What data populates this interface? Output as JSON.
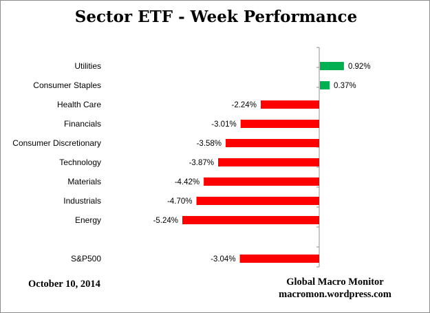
{
  "chart_data": {
    "type": "bar",
    "orientation": "horizontal",
    "title": "Sector ETF - Week Performance",
    "categories": [
      "Utilities",
      "Consumer Staples",
      "Health Care",
      "Financials",
      "Consumer Discretionary",
      "Technology",
      "Materials",
      "Industrials",
      "Energy",
      "",
      "S&P500"
    ],
    "values": [
      0.92,
      0.37,
      -2.24,
      -3.01,
      -3.58,
      -3.87,
      -4.42,
      -4.7,
      -5.24,
      null,
      -3.04
    ],
    "data_labels": [
      "0.92%",
      "0.37%",
      "-2.24%",
      "-3.01%",
      "-3.58%",
      "-3.87%",
      "-4.42%",
      "-4.70%",
      "-5.24%",
      "",
      "-3.04%"
    ],
    "unit": "%",
    "xlim": [
      -5.24,
      0.92
    ],
    "grid": false,
    "legend": "none",
    "colors": {
      "positive": "#00b050",
      "negative": "#ff0000",
      "axis": "#8c8c8c"
    }
  },
  "footer": {
    "date": "October 10,  2014",
    "source_line1": "Global Macro Monitor",
    "source_line2": "macromon.wordpress.com"
  }
}
